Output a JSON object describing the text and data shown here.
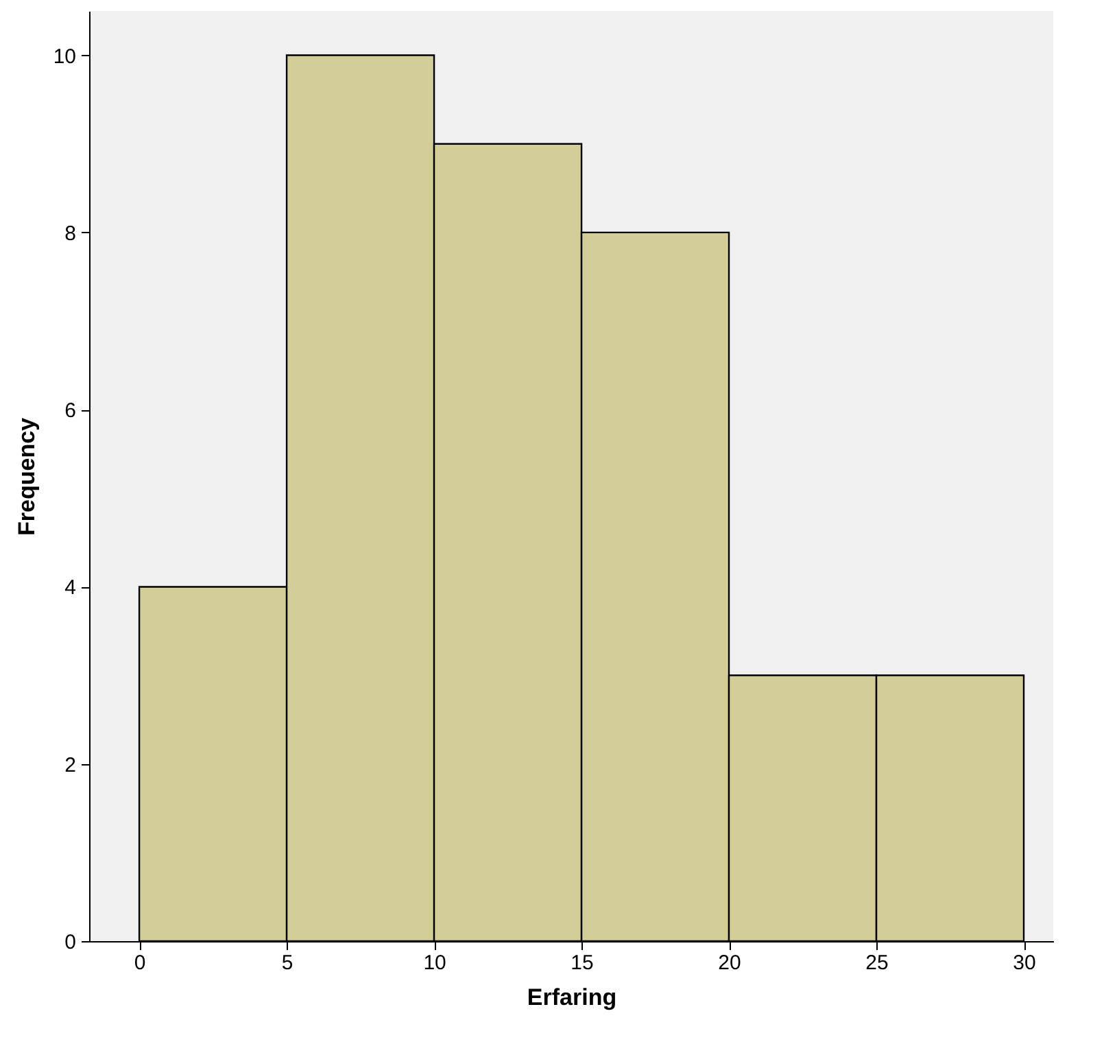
{
  "chart_data": {
    "type": "histogram",
    "xlabel": "Erfaring",
    "ylabel": "Frequency",
    "bins": [
      0,
      5,
      10,
      15,
      20,
      25,
      30
    ],
    "values": [
      4,
      10,
      9,
      8,
      3,
      3
    ],
    "color": "#d3ce97",
    "xlim": [
      -1.7,
      31
    ],
    "ylim": [
      0,
      10.5
    ],
    "xticks": [
      0,
      5,
      10,
      15,
      20,
      25,
      30
    ],
    "yticks": [
      0,
      2,
      4,
      6,
      8,
      10
    ]
  }
}
